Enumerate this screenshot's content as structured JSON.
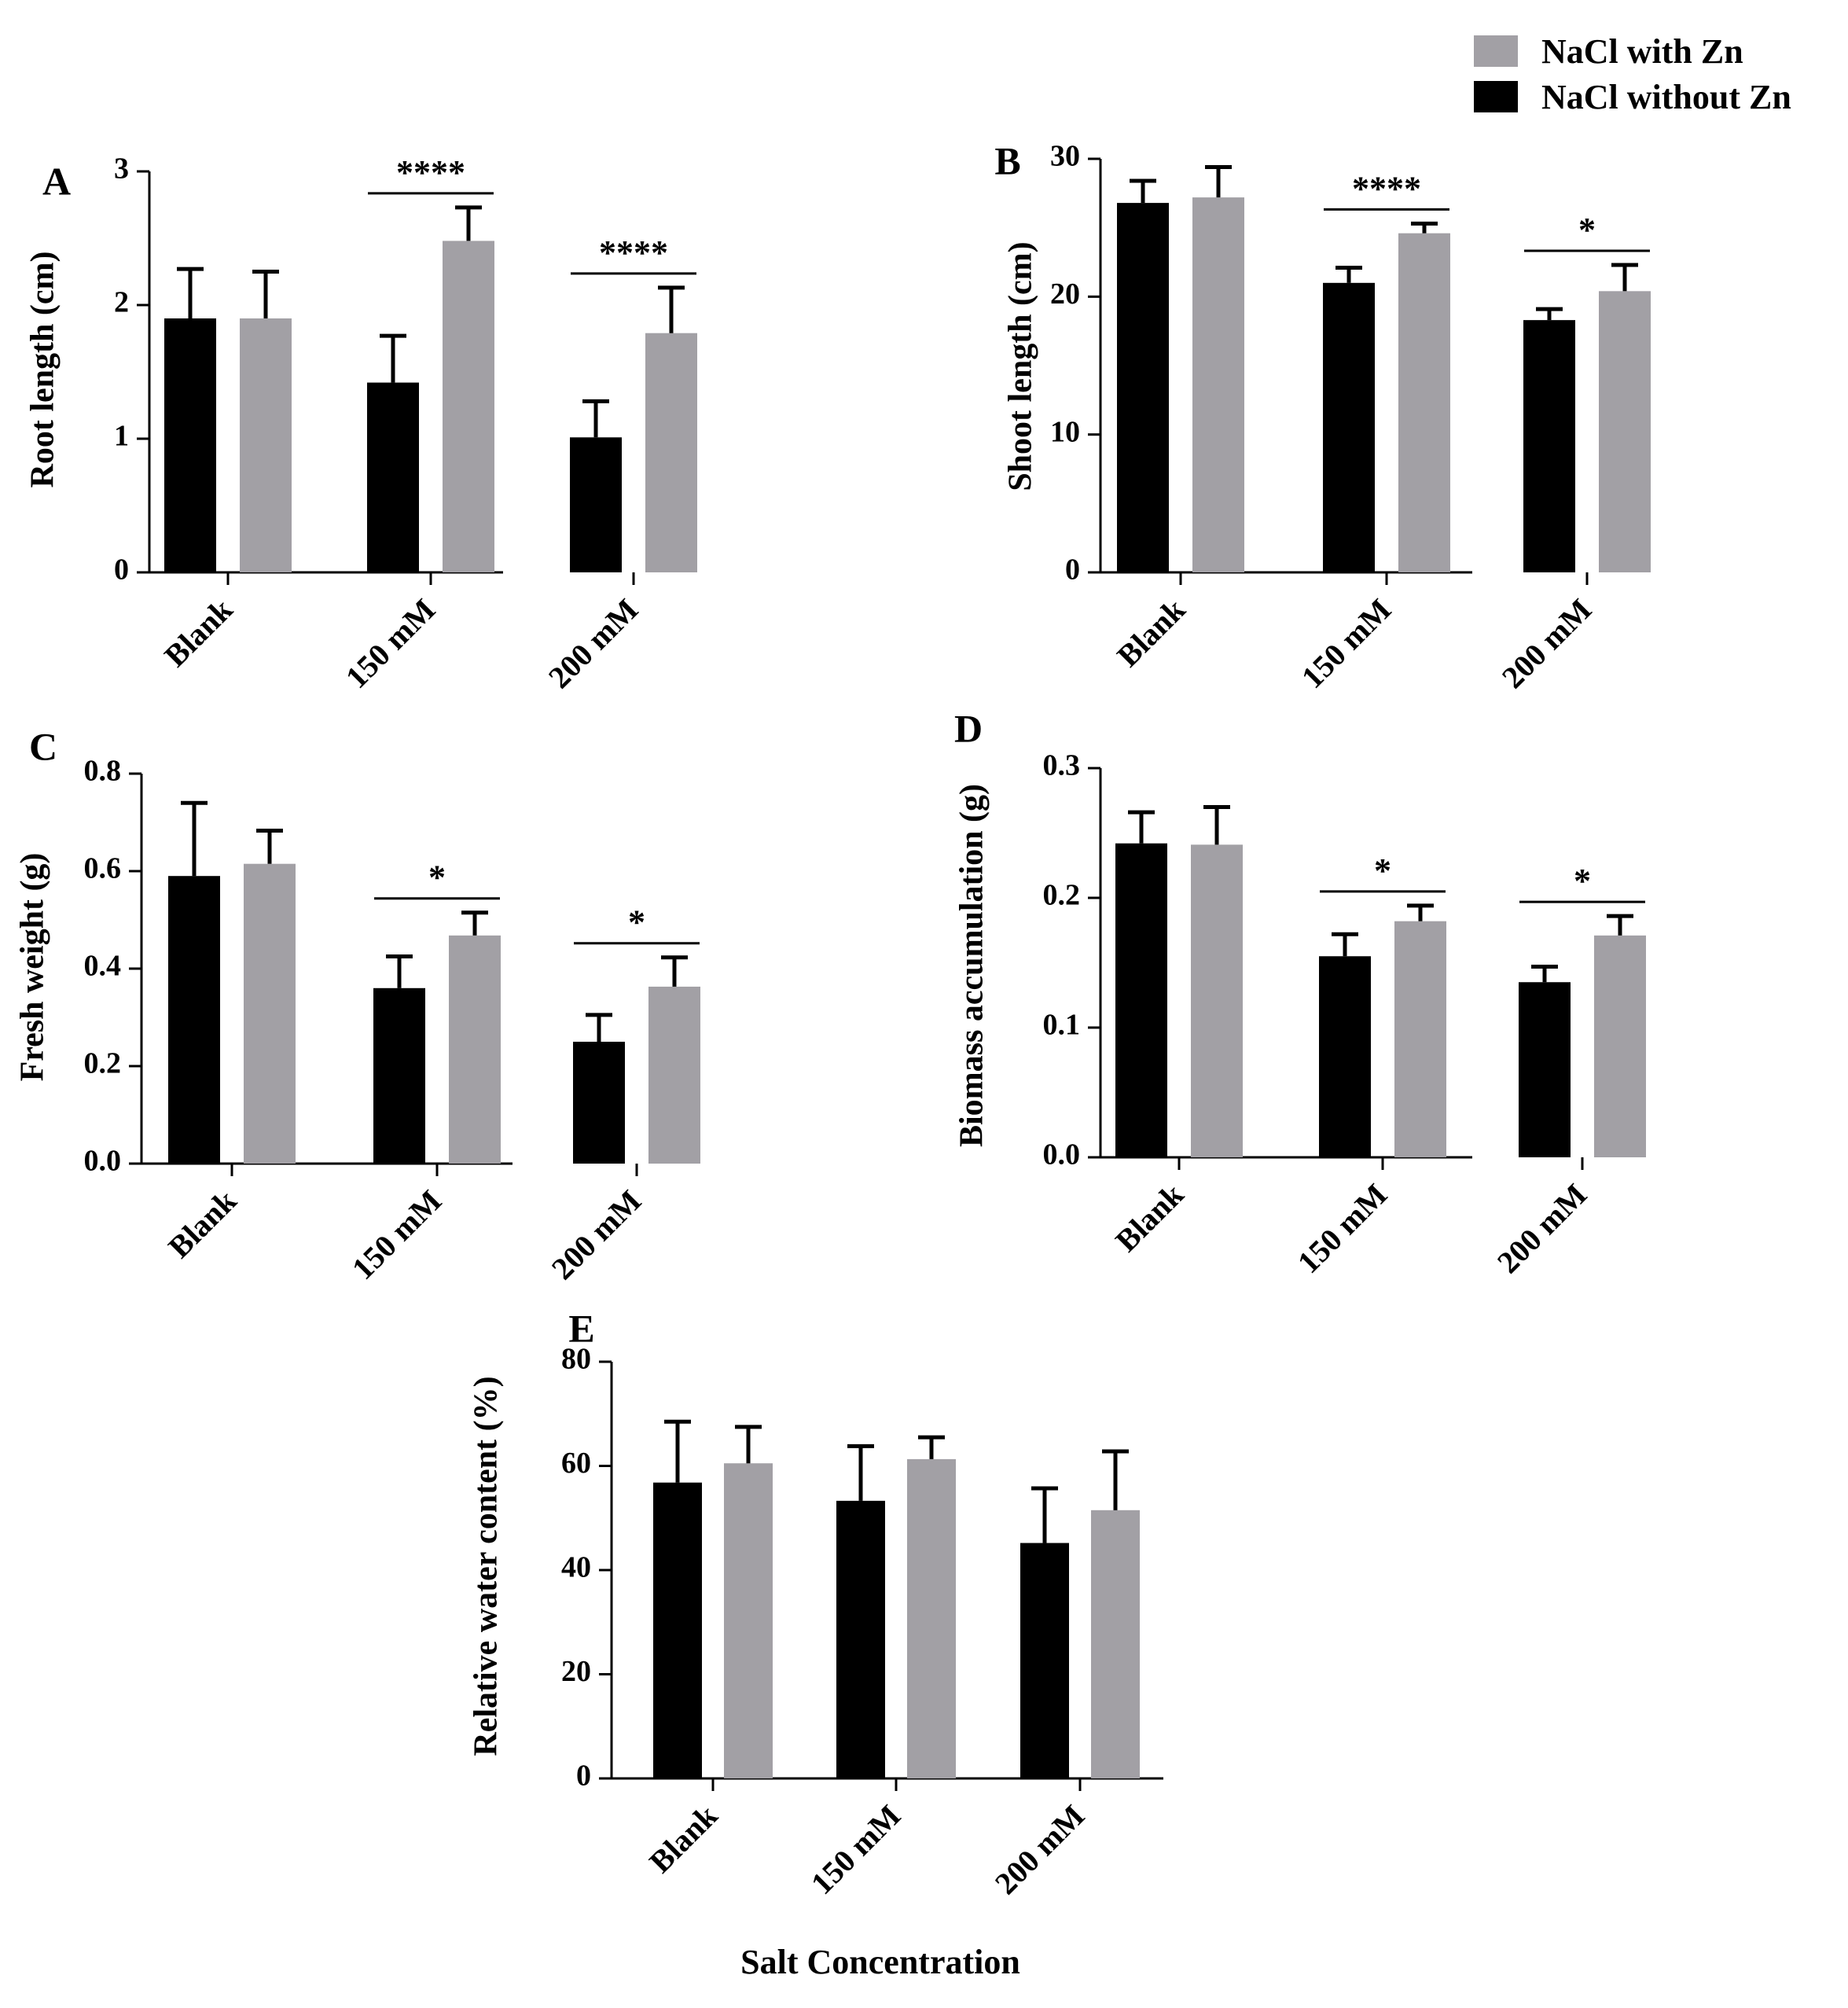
{
  "legend": {
    "items": [
      {
        "label": "NaCl with Zn",
        "color": "#a2a0a5"
      },
      {
        "label": "NaCl without Zn",
        "color": "#000000"
      }
    ]
  },
  "x_axis_title": "Salt Concentration",
  "colors": {
    "with_zn": "#a2a0a5",
    "without_zn": "#000000"
  },
  "chart_data": [
    {
      "panel": "A",
      "type": "bar",
      "ylabel": "Root length (cm)",
      "categories": [
        "Blank",
        "150 mM",
        "200 mM"
      ],
      "ylim": [
        0,
        3
      ],
      "yticks": [
        0,
        1,
        2,
        3
      ],
      "tick_labels": [
        "0",
        "1",
        "2",
        "3"
      ],
      "series": [
        {
          "name": "NaCl without Zn",
          "values": [
            1.9,
            1.42,
            1.01
          ],
          "errors": [
            0.37,
            0.35,
            0.27
          ]
        },
        {
          "name": "NaCl with Zn",
          "values": [
            1.9,
            2.48,
            1.79
          ],
          "errors": [
            0.35,
            0.25,
            0.34
          ]
        }
      ],
      "significance": [
        {
          "category": "150 mM",
          "label": "****"
        },
        {
          "category": "200 mM",
          "label": "****"
        }
      ]
    },
    {
      "panel": "B",
      "type": "bar",
      "ylabel": "Shoot length (cm)",
      "categories": [
        "Blank",
        "150 mM",
        "200 mM"
      ],
      "ylim": [
        0,
        30
      ],
      "yticks": [
        0,
        10,
        20,
        30
      ],
      "tick_labels": [
        "0",
        "10",
        "20",
        "30"
      ],
      "series": [
        {
          "name": "NaCl without Zn",
          "values": [
            26.8,
            21.0,
            18.3
          ],
          "errors": [
            1.6,
            1.1,
            0.8
          ]
        },
        {
          "name": "NaCl with Zn",
          "values": [
            27.2,
            24.6,
            20.4
          ],
          "errors": [
            2.2,
            0.7,
            1.9
          ]
        }
      ],
      "significance": [
        {
          "category": "150 mM",
          "label": "****"
        },
        {
          "category": "200 mM",
          "label": "*"
        }
      ]
    },
    {
      "panel": "C",
      "type": "bar",
      "ylabel": "Fresh weight (g)",
      "categories": [
        "Blank",
        "150 mM",
        "200 mM"
      ],
      "ylim": [
        0,
        0.8
      ],
      "yticks": [
        0,
        0.2,
        0.4,
        0.6,
        0.8
      ],
      "tick_labels": [
        "0.0",
        "0.2",
        "0.4",
        "0.6",
        "0.8"
      ],
      "series": [
        {
          "name": "NaCl without Zn",
          "values": [
            0.59,
            0.36,
            0.25
          ],
          "errors": [
            0.15,
            0.065,
            0.055
          ]
        },
        {
          "name": "NaCl with Zn",
          "values": [
            0.615,
            0.468,
            0.363
          ],
          "errors": [
            0.068,
            0.047,
            0.06
          ]
        }
      ],
      "significance": [
        {
          "category": "150 mM",
          "label": "*"
        },
        {
          "category": "200 mM",
          "label": "*"
        }
      ]
    },
    {
      "panel": "D",
      "type": "bar",
      "ylabel": "Biomass accumulation (g)",
      "categories": [
        "Blank",
        "150 mM",
        "200 mM"
      ],
      "ylim": [
        0,
        0.3
      ],
      "yticks": [
        0,
        0.1,
        0.2,
        0.3
      ],
      "tick_labels": [
        "0.0",
        "0.1",
        "0.2",
        "0.3"
      ],
      "series": [
        {
          "name": "NaCl without Zn",
          "values": [
            0.242,
            0.155,
            0.135
          ],
          "errors": [
            0.024,
            0.017,
            0.012
          ]
        },
        {
          "name": "NaCl with Zn",
          "values": [
            0.241,
            0.182,
            0.171
          ],
          "errors": [
            0.029,
            0.012,
            0.015
          ]
        }
      ],
      "significance": [
        {
          "category": "150 mM",
          "label": "*"
        },
        {
          "category": "200 mM",
          "label": "*"
        }
      ]
    },
    {
      "panel": "E",
      "type": "bar",
      "ylabel": "Relative water content (%)",
      "categories": [
        "Blank",
        "150 mM",
        "200 mM"
      ],
      "ylim": [
        0,
        80
      ],
      "yticks": [
        0,
        20,
        40,
        60,
        80
      ],
      "tick_labels": [
        "0",
        "20",
        "40",
        "60",
        "80"
      ],
      "series": [
        {
          "name": "NaCl without Zn",
          "values": [
            56.8,
            53.3,
            45.2
          ],
          "errors": [
            11.7,
            10.5,
            10.5
          ]
        },
        {
          "name": "NaCl with Zn",
          "values": [
            60.5,
            61.3,
            51.5
          ],
          "errors": [
            7.0,
            4.2,
            11.3
          ]
        }
      ],
      "significance": []
    }
  ]
}
